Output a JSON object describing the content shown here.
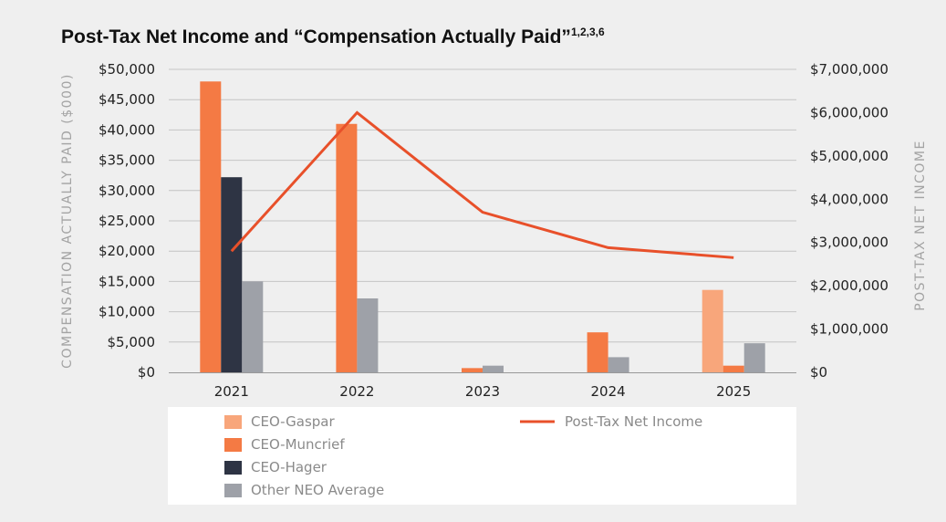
{
  "chart_data": {
    "type": "bar",
    "title": "Post-Tax Net Income and “Compensation Actually Paid”",
    "title_superscript": "1,2,3,6",
    "categories": [
      "2021",
      "2022",
      "2023",
      "2024",
      "2025"
    ],
    "ylabel": "COMPENSATION ACTUALLY PAID ($000)",
    "y2label": "POST-TAX NET INCOME",
    "ylim": [
      0,
      50000
    ],
    "y2lim": [
      0,
      7000000
    ],
    "yticks": [
      "$0",
      "$5,000",
      "$10,000",
      "$15,000",
      "$20,000",
      "$25,000",
      "$30,000",
      "$35,000",
      "$40,000",
      "$45,000",
      "$50,000"
    ],
    "y2ticks": [
      "$0",
      "$1,000,000",
      "$2,000,000",
      "$3,000,000",
      "$4,000,000",
      "$5,000,000",
      "$6,000,000",
      "$7,000,000"
    ],
    "grid": true,
    "legend_position": "bottom",
    "series": [
      {
        "name": "CEO-Gaspar",
        "type": "bar",
        "color": "#f8a67b",
        "values": [
          null,
          null,
          null,
          null,
          13600
        ]
      },
      {
        "name": "CEO-Muncrief",
        "type": "bar",
        "color": "#f47a44",
        "values": [
          48000,
          41000,
          700,
          6600,
          1100
        ]
      },
      {
        "name": "CEO-Hager",
        "type": "bar",
        "color": "#2e3444",
        "values": [
          32200,
          null,
          null,
          null,
          null
        ]
      },
      {
        "name": "Other NEO Average",
        "type": "bar",
        "color": "#9ea1a8",
        "values": [
          15000,
          12200,
          1100,
          2500,
          4800
        ]
      },
      {
        "name": "Post-Tax Net Income",
        "type": "line",
        "axis": "right",
        "color": "#e8502a",
        "values": [
          2800000,
          6000000,
          3700000,
          2880000,
          2650000
        ]
      }
    ]
  }
}
